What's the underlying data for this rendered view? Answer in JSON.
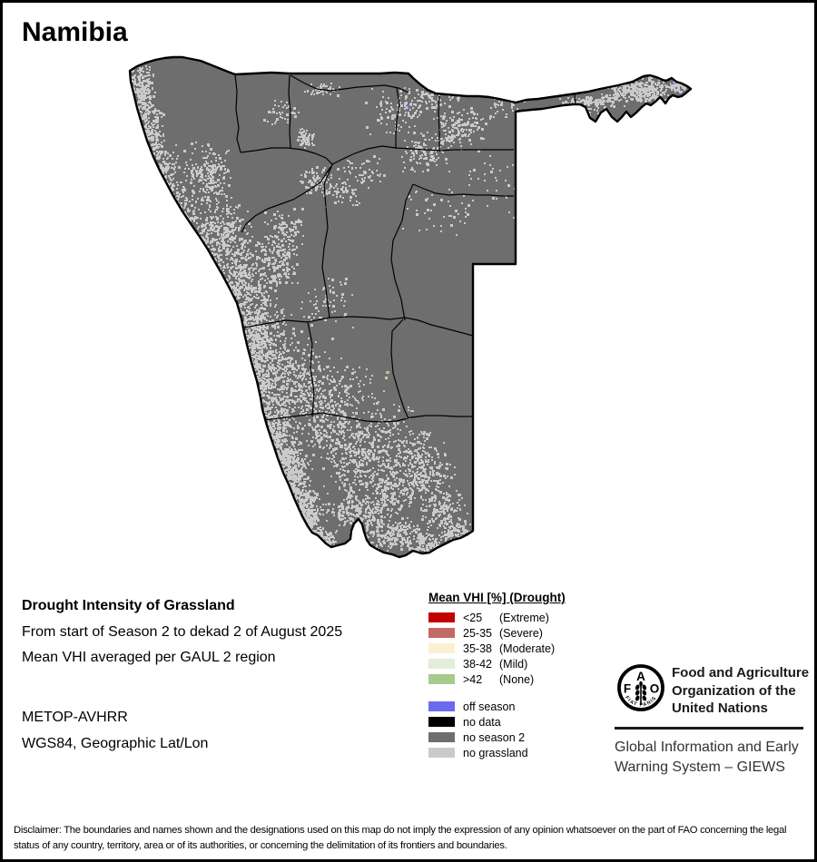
{
  "title": "Namibia",
  "info": {
    "heading": "Drought Intensity of Grassland",
    "period_line": "From start of Season 2 to dekad 2 of August 2025",
    "aggregation_line": "Mean VHI averaged per GAUL 2 region",
    "sensor": "METOP-AVHRR",
    "projection": "WGS84, Geographic Lat/Lon"
  },
  "legend": {
    "title": "Mean VHI [%] (Drought)",
    "classes": [
      {
        "label": "<25",
        "qualifier": "(Extreme)",
        "color": "#C30000"
      },
      {
        "label": "25-35",
        "qualifier": "(Severe)",
        "color": "#C26B66"
      },
      {
        "label": "35-38",
        "qualifier": "(Moderate)",
        "color": "#FCEFD2"
      },
      {
        "label": "38-42",
        "qualifier": "(Mild)",
        "color": "#E2EDDA"
      },
      {
        "label": ">42",
        "qualifier": "(None)",
        "color": "#A5CB8F"
      }
    ],
    "extras": [
      {
        "label": "off season",
        "color": "#6A6AEE"
      },
      {
        "label": "no data",
        "color": "#000000"
      },
      {
        "label": "no season 2",
        "color": "#6E6E6E"
      },
      {
        "label": "no grassland",
        "color": "#CACACA"
      }
    ]
  },
  "map": {
    "country": "Namibia",
    "colors": {
      "land": "#6E6E6E",
      "no_grassland": "#CACACA",
      "border": "#000000",
      "background": "#FFFFFF"
    }
  },
  "footer": {
    "fao_lines": [
      "Food and Agriculture",
      "Organization of the",
      "United Nations"
    ],
    "giews_lines": [
      "Global Information and Early",
      "Warning System – GIEWS"
    ],
    "logo": {
      "letters": [
        "F",
        "A",
        "O"
      ],
      "motto": "FIAT PANIS"
    }
  },
  "disclaimer": "Disclaimer: The boundaries and names shown and the designations used on this map do not imply the expression of any opinion whatsoever on the part of FAO concerning the legal status of any country, territory, area or of its authorities, or concerning the delimitation of its frontiers and boundaries."
}
